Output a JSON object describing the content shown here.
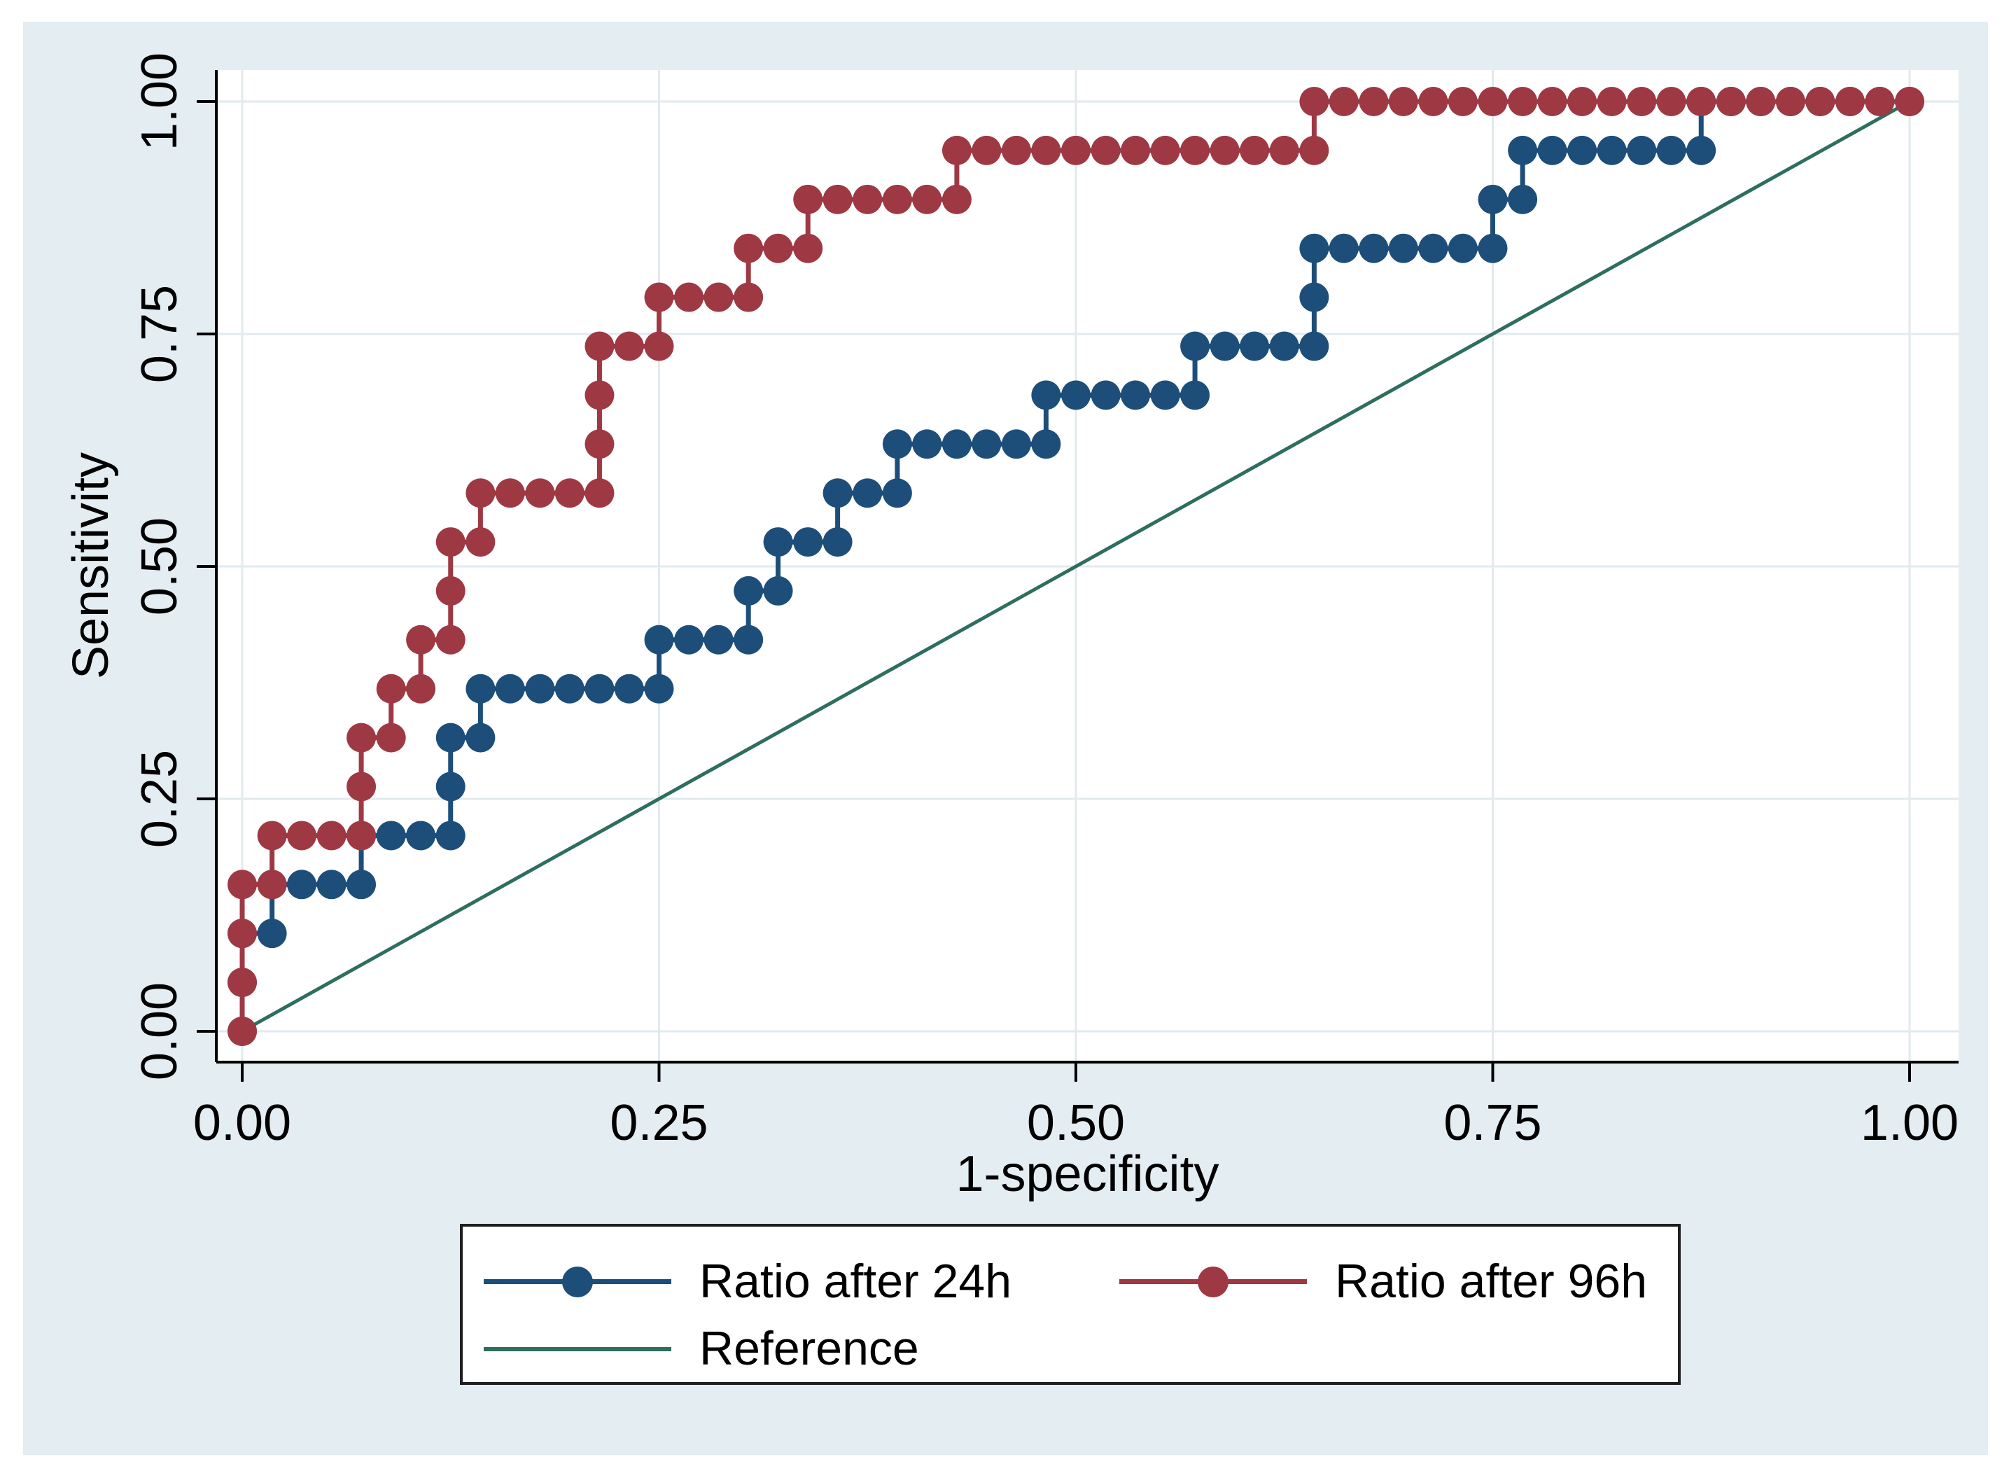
{
  "chart_data": {
    "type": "line",
    "subtype": "roc-step-curves",
    "title": "",
    "xlabel": "1-specificity",
    "ylabel": "Sensitivity",
    "xlim": [
      0,
      1
    ],
    "ylim": [
      0,
      1
    ],
    "grid": true,
    "legend_position": "bottom",
    "x_ticks": {
      "values": [
        0,
        0.25,
        0.5,
        0.75,
        1
      ],
      "labels": [
        "0.00",
        "0.25",
        "0.50",
        "0.75",
        "1.00"
      ]
    },
    "y_ticks": {
      "values": [
        0,
        0.25,
        0.5,
        0.75,
        1
      ],
      "labels": [
        "0.00",
        "0.25",
        "0.50",
        "0.75",
        "1.00"
      ]
    },
    "series": [
      {
        "name": "Ratio after 24h",
        "color": "#1d4e7a",
        "marker": "circle",
        "points": [
          [
            0,
            0
          ],
          [
            0,
            0.0526
          ],
          [
            0,
            0.1053
          ],
          [
            0.0179,
            0.1053
          ],
          [
            0.0179,
            0.1579
          ],
          [
            0.0357,
            0.1579
          ],
          [
            0.0536,
            0.1579
          ],
          [
            0.0714,
            0.1579
          ],
          [
            0.0714,
            0.2105
          ],
          [
            0.0893,
            0.2105
          ],
          [
            0.1071,
            0.2105
          ],
          [
            0.125,
            0.2105
          ],
          [
            0.125,
            0.2632
          ],
          [
            0.125,
            0.3158
          ],
          [
            0.1429,
            0.3158
          ],
          [
            0.1429,
            0.3684
          ],
          [
            0.1607,
            0.3684
          ],
          [
            0.1786,
            0.3684
          ],
          [
            0.1964,
            0.3684
          ],
          [
            0.2143,
            0.3684
          ],
          [
            0.2321,
            0.3684
          ],
          [
            0.25,
            0.3684
          ],
          [
            0.25,
            0.4211
          ],
          [
            0.2679,
            0.4211
          ],
          [
            0.2857,
            0.4211
          ],
          [
            0.3036,
            0.4211
          ],
          [
            0.3036,
            0.4737
          ],
          [
            0.3214,
            0.4737
          ],
          [
            0.3214,
            0.5263
          ],
          [
            0.3393,
            0.5263
          ],
          [
            0.3571,
            0.5263
          ],
          [
            0.3571,
            0.5789
          ],
          [
            0.375,
            0.5789
          ],
          [
            0.3929,
            0.5789
          ],
          [
            0.3929,
            0.6316
          ],
          [
            0.4107,
            0.6316
          ],
          [
            0.4286,
            0.6316
          ],
          [
            0.4464,
            0.6316
          ],
          [
            0.4643,
            0.6316
          ],
          [
            0.4821,
            0.6316
          ],
          [
            0.4821,
            0.6842
          ],
          [
            0.5,
            0.6842
          ],
          [
            0.5179,
            0.6842
          ],
          [
            0.5357,
            0.6842
          ],
          [
            0.5536,
            0.6842
          ],
          [
            0.5714,
            0.6842
          ],
          [
            0.5714,
            0.7368
          ],
          [
            0.5893,
            0.7368
          ],
          [
            0.6071,
            0.7368
          ],
          [
            0.625,
            0.7368
          ],
          [
            0.6429,
            0.7368
          ],
          [
            0.6429,
            0.7895
          ],
          [
            0.6429,
            0.8421
          ],
          [
            0.6607,
            0.8421
          ],
          [
            0.6786,
            0.8421
          ],
          [
            0.6964,
            0.8421
          ],
          [
            0.7143,
            0.8421
          ],
          [
            0.7321,
            0.8421
          ],
          [
            0.75,
            0.8421
          ],
          [
            0.75,
            0.8947
          ],
          [
            0.7679,
            0.8947
          ],
          [
            0.7679,
            0.9474
          ],
          [
            0.7857,
            0.9474
          ],
          [
            0.8036,
            0.9474
          ],
          [
            0.8214,
            0.9474
          ],
          [
            0.8393,
            0.9474
          ],
          [
            0.8571,
            0.9474
          ],
          [
            0.875,
            0.9474
          ],
          [
            0.875,
            1
          ],
          [
            0.8929,
            1
          ],
          [
            0.9107,
            1
          ],
          [
            0.9286,
            1
          ],
          [
            0.9464,
            1
          ],
          [
            0.9643,
            1
          ],
          [
            0.9821,
            1
          ],
          [
            1,
            1
          ]
        ]
      },
      {
        "name": "Ratio after 96h",
        "color": "#9e3944",
        "marker": "circle",
        "points": [
          [
            0,
            0
          ],
          [
            0,
            0.0526
          ],
          [
            0,
            0.1053
          ],
          [
            0,
            0.1579
          ],
          [
            0.0179,
            0.1579
          ],
          [
            0.0179,
            0.2105
          ],
          [
            0.0357,
            0.2105
          ],
          [
            0.0536,
            0.2105
          ],
          [
            0.0714,
            0.2105
          ],
          [
            0.0714,
            0.2632
          ],
          [
            0.0714,
            0.3158
          ],
          [
            0.0893,
            0.3158
          ],
          [
            0.0893,
            0.3684
          ],
          [
            0.1071,
            0.3684
          ],
          [
            0.1071,
            0.4211
          ],
          [
            0.125,
            0.4211
          ],
          [
            0.125,
            0.4737
          ],
          [
            0.125,
            0.5263
          ],
          [
            0.1429,
            0.5263
          ],
          [
            0.1429,
            0.5789
          ],
          [
            0.1607,
            0.5789
          ],
          [
            0.1786,
            0.5789
          ],
          [
            0.1964,
            0.5789
          ],
          [
            0.2143,
            0.5789
          ],
          [
            0.2143,
            0.6316
          ],
          [
            0.2143,
            0.6842
          ],
          [
            0.2143,
            0.7368
          ],
          [
            0.2321,
            0.7368
          ],
          [
            0.25,
            0.7368
          ],
          [
            0.25,
            0.7895
          ],
          [
            0.2679,
            0.7895
          ],
          [
            0.2857,
            0.7895
          ],
          [
            0.3036,
            0.7895
          ],
          [
            0.3036,
            0.8421
          ],
          [
            0.3214,
            0.8421
          ],
          [
            0.3393,
            0.8421
          ],
          [
            0.3393,
            0.8947
          ],
          [
            0.3571,
            0.8947
          ],
          [
            0.375,
            0.8947
          ],
          [
            0.3929,
            0.8947
          ],
          [
            0.4107,
            0.8947
          ],
          [
            0.4286,
            0.8947
          ],
          [
            0.4286,
            0.9474
          ],
          [
            0.4464,
            0.9474
          ],
          [
            0.4643,
            0.9474
          ],
          [
            0.4821,
            0.9474
          ],
          [
            0.5,
            0.9474
          ],
          [
            0.5179,
            0.9474
          ],
          [
            0.5357,
            0.9474
          ],
          [
            0.5536,
            0.9474
          ],
          [
            0.5714,
            0.9474
          ],
          [
            0.5893,
            0.9474
          ],
          [
            0.6071,
            0.9474
          ],
          [
            0.625,
            0.9474
          ],
          [
            0.6429,
            0.9474
          ],
          [
            0.6429,
            1
          ],
          [
            0.6607,
            1
          ],
          [
            0.6786,
            1
          ],
          [
            0.6964,
            1
          ],
          [
            0.7143,
            1
          ],
          [
            0.7321,
            1
          ],
          [
            0.75,
            1
          ],
          [
            0.7679,
            1
          ],
          [
            0.7857,
            1
          ],
          [
            0.8036,
            1
          ],
          [
            0.8214,
            1
          ],
          [
            0.8393,
            1
          ],
          [
            0.8571,
            1
          ],
          [
            0.875,
            1
          ],
          [
            0.8929,
            1
          ],
          [
            0.9107,
            1
          ],
          [
            0.9286,
            1
          ],
          [
            0.9464,
            1
          ],
          [
            0.9643,
            1
          ],
          [
            0.9821,
            1
          ],
          [
            1,
            1
          ]
        ]
      },
      {
        "name": "Reference",
        "color": "#2e6e5e",
        "marker": "none",
        "points": [
          [
            0,
            0
          ],
          [
            1,
            1
          ]
        ]
      }
    ]
  },
  "legend": {
    "items": [
      {
        "label": "Ratio after 24h",
        "color": "#1d4e7a",
        "marker": "line-dot"
      },
      {
        "label": "Ratio after 96h",
        "color": "#9e3944",
        "marker": "line-dot"
      },
      {
        "label": "Reference",
        "color": "#2e6e5e",
        "marker": "line"
      }
    ]
  },
  "colors": {
    "page_bg": "#ffffff",
    "canvas_bg": "#e4edf1",
    "plot_bg": "#ffffff",
    "grid": "#e2eaee",
    "axis": "#000000",
    "text": "#000000",
    "legend_border": "#1f1f1f"
  }
}
